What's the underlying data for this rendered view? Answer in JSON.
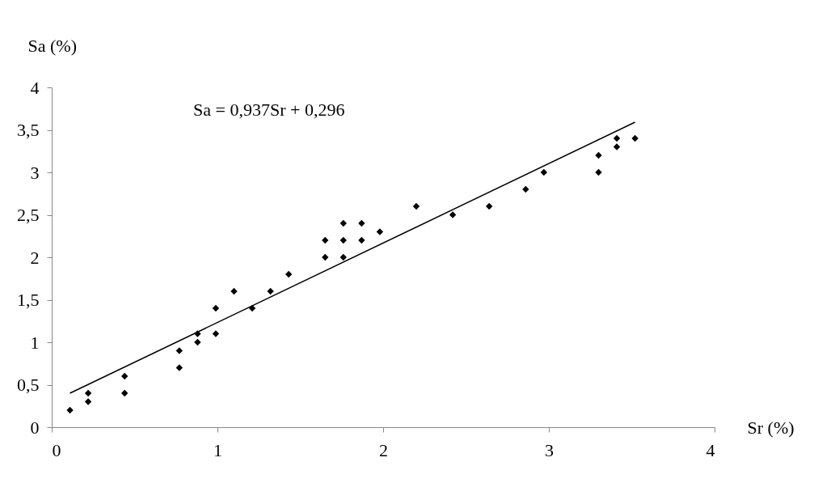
{
  "chart_data": {
    "type": "scatter",
    "xlabel": "Sr (%)",
    "ylabel": "Sa (%)",
    "annotations": [
      "Sa  = 0,937Sr + 0,296"
    ],
    "xlim": [
      0,
      4
    ],
    "xticks": [
      0,
      1,
      2,
      3,
      4
    ],
    "ylim": [
      0,
      4
    ],
    "yticks": [
      0,
      {
        "value": 0.5,
        "label": "0,5"
      },
      1,
      {
        "value": 1.5,
        "label": "1,5"
      },
      2,
      {
        "value": 2.5,
        "label": "2,5"
      },
      3,
      {
        "value": 3.5,
        "label": "3,5"
      },
      4
    ],
    "grid": false,
    "legend": false,
    "marker": "diamond",
    "series": [
      {
        "type": "scatter",
        "color": "#000000",
        "x": [
          0.11,
          0.22,
          0.22,
          0.44,
          0.44,
          0.77,
          0.77,
          0.88,
          0.88,
          0.99,
          0.99,
          1.1,
          1.21,
          1.32,
          1.43,
          1.65,
          1.65,
          1.76,
          1.76,
          1.76,
          1.87,
          1.87,
          1.98,
          2.2,
          2.42,
          2.64,
          2.86,
          2.97,
          3.3,
          3.3,
          3.41,
          3.41,
          3.52
        ],
        "values": [
          0.2,
          0.4,
          0.3,
          0.6,
          0.4,
          0.9,
          0.7,
          1.1,
          1.0,
          1.4,
          1.1,
          1.6,
          1.4,
          1.6,
          1.8,
          2.2,
          2.0,
          2.4,
          2.2,
          2.0,
          2.4,
          2.2,
          2.3,
          2.6,
          2.5,
          2.6,
          2.8,
          3.0,
          3.2,
          3.0,
          3.4,
          3.3,
          3.4
        ]
      },
      {
        "type": "line",
        "color": "#000000",
        "line_style": "solid",
        "marker": "none",
        "x": [
          0.11,
          3.52
        ],
        "values": [
          0.4,
          3.59
        ]
      }
    ]
  }
}
